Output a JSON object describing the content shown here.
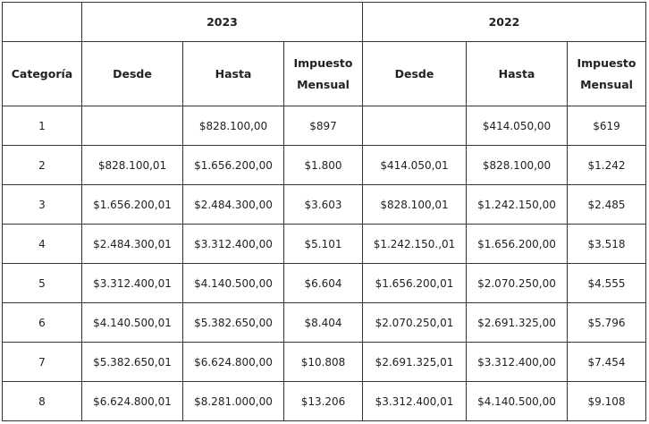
{
  "table": {
    "category_header": "Categoría",
    "years": [
      "2023",
      "2022"
    ],
    "sub_headers": [
      "Desde",
      "Hasta",
      "Impuesto Mensual",
      "Desde",
      "Hasta",
      "Impuesto Mensual"
    ],
    "rows": [
      [
        "1",
        "",
        "$828.100,00",
        "$897",
        "",
        "$414.050,00",
        "$619"
      ],
      [
        "2",
        "$828.100,01",
        "$1.656.200,00",
        "$1.800",
        "$414.050,01",
        "$828.100,00",
        "$1.242"
      ],
      [
        "3",
        "$1.656.200,01",
        "$2.484.300,00",
        "$3.603",
        "$828.100,01",
        "$1.242.150,00",
        "$2.485"
      ],
      [
        "4",
        "$2.484.300,01",
        "$3.312.400,00",
        "$5.101",
        "$1.242.150.,01",
        "$1.656.200,00",
        "$3.518"
      ],
      [
        "5",
        "$3.312.400,01",
        "$4.140.500,00",
        "$6.604",
        "$1.656.200,01",
        "$2.070.250,00",
        "$4.555"
      ],
      [
        "6",
        "$4.140.500,01",
        "$5.382.650,00",
        "$8.404",
        "$2.070.250,01",
        "$2.691.325,00",
        "$5.796"
      ],
      [
        "7",
        "$5.382.650,01",
        "$6.624.800,00",
        "$10.808",
        "$2.691.325,01",
        "$3.312.400,00",
        "$7.454"
      ],
      [
        "8",
        "$6.624.800,01",
        "$8.281.000,00",
        "$13.206",
        "$3.312.400,01",
        "$4.140.500,00",
        "$9.108"
      ]
    ]
  }
}
